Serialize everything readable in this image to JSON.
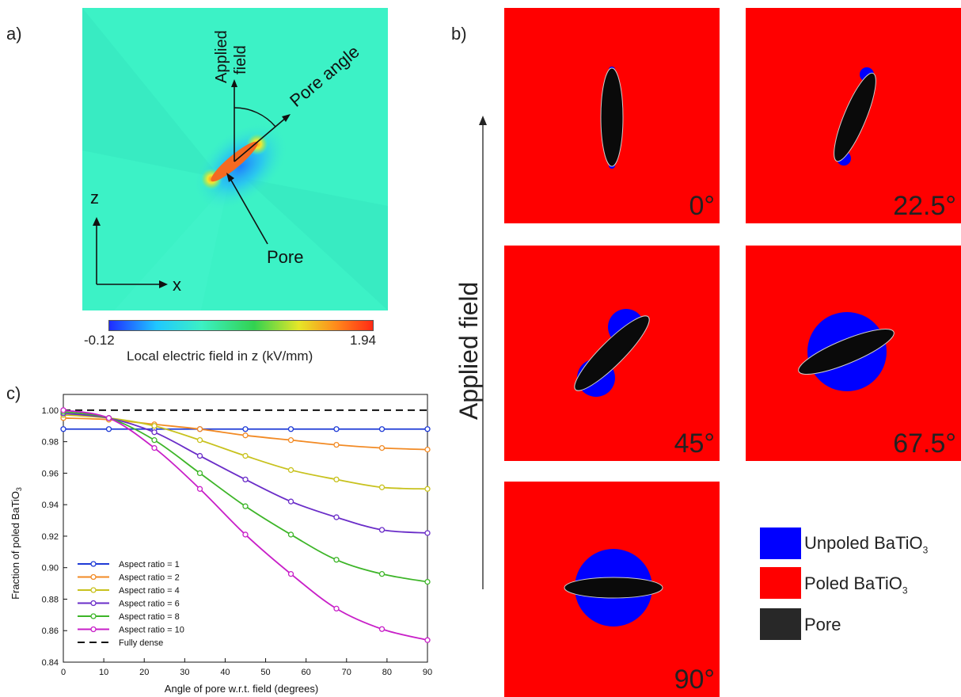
{
  "panel_a": {
    "letter": "a)",
    "labels": {
      "applied_field_line1": "Applied",
      "applied_field_line2": "field",
      "pore_angle": "Pore angle",
      "pore": "Pore",
      "axis_z": "z",
      "axis_x": "x"
    },
    "colorbar": {
      "min": "-0.12",
      "max": "1.94",
      "label": "Local electric field in z (kV/mm)",
      "colors": [
        "#1f2cff",
        "#20c8ff",
        "#3cf0c4",
        "#32d250",
        "#e6e628",
        "#ff8a1c",
        "#ff2a14"
      ]
    },
    "colors": {
      "background": "#3cf2c6",
      "pore": "#f56a21",
      "low_field": "#1e8cff",
      "hot_spot": "#f0e832"
    }
  },
  "panel_b": {
    "letter": "b)",
    "axis_label": "Applied field",
    "panels": [
      {
        "angle": "0°",
        "angle_deg": 0
      },
      {
        "angle": "22.5°",
        "angle_deg": 22.5
      },
      {
        "angle": "45°",
        "angle_deg": 45
      },
      {
        "angle": "67.5°",
        "angle_deg": 67.5
      },
      {
        "angle": "90°",
        "angle_deg": 90
      }
    ],
    "legend": [
      {
        "label": "Unpoled BaTiO",
        "sub": "3",
        "color": "#0000ff"
      },
      {
        "label": "Poled BaTiO",
        "sub": "3",
        "color": "#ff0000"
      },
      {
        "label": "Pore",
        "sub": "",
        "color": "#282828"
      }
    ]
  },
  "panel_c": {
    "letter": "c)"
  },
  "chart_data": {
    "type": "line",
    "xlabel": "Angle of pore w.r.t. field (degrees)",
    "ylabel_main": "Fraction of poled BaTiO",
    "ylabel_sub": "3",
    "xlim": [
      0,
      90
    ],
    "ylim": [
      0.84,
      1.01
    ],
    "xticks": [
      0,
      10,
      20,
      30,
      40,
      50,
      60,
      70,
      80,
      90
    ],
    "yticks": [
      "0.84",
      "0.86",
      "0.88",
      "0.90",
      "0.92",
      "0.94",
      "0.96",
      "0.98",
      "1.00"
    ],
    "x": [
      0,
      11.25,
      22.5,
      33.75,
      45,
      56.25,
      67.5,
      78.75,
      90
    ],
    "legend_position": "bottom-left",
    "series": [
      {
        "name": "Aspect ratio = 1",
        "color": "#1f3bd6",
        "values": [
          0.988,
          0.988,
          0.988,
          0.988,
          0.988,
          0.988,
          0.988,
          0.988,
          0.988
        ]
      },
      {
        "name": "Aspect ratio = 2",
        "color": "#f28a24",
        "values": [
          0.995,
          0.994,
          0.991,
          0.988,
          0.984,
          0.981,
          0.978,
          0.976,
          0.975
        ]
      },
      {
        "name": "Aspect ratio = 4",
        "color": "#c8c21e",
        "values": [
          0.997,
          0.995,
          0.99,
          0.981,
          0.971,
          0.962,
          0.956,
          0.951,
          0.95
        ]
      },
      {
        "name": "Aspect ratio = 6",
        "color": "#6a2dc8",
        "values": [
          0.998,
          0.995,
          0.986,
          0.971,
          0.956,
          0.942,
          0.932,
          0.924,
          0.922
        ]
      },
      {
        "name": "Aspect ratio = 8",
        "color": "#3db528",
        "values": [
          0.999,
          0.995,
          0.981,
          0.96,
          0.939,
          0.921,
          0.905,
          0.896,
          0.891
        ]
      },
      {
        "name": "Aspect ratio = 10",
        "color": "#c81fc8",
        "values": [
          1.0,
          0.995,
          0.976,
          0.95,
          0.921,
          0.896,
          0.874,
          0.861,
          0.854
        ]
      }
    ],
    "reference": {
      "name": "Fully dense",
      "value": 1.0,
      "color": "#111111"
    }
  }
}
